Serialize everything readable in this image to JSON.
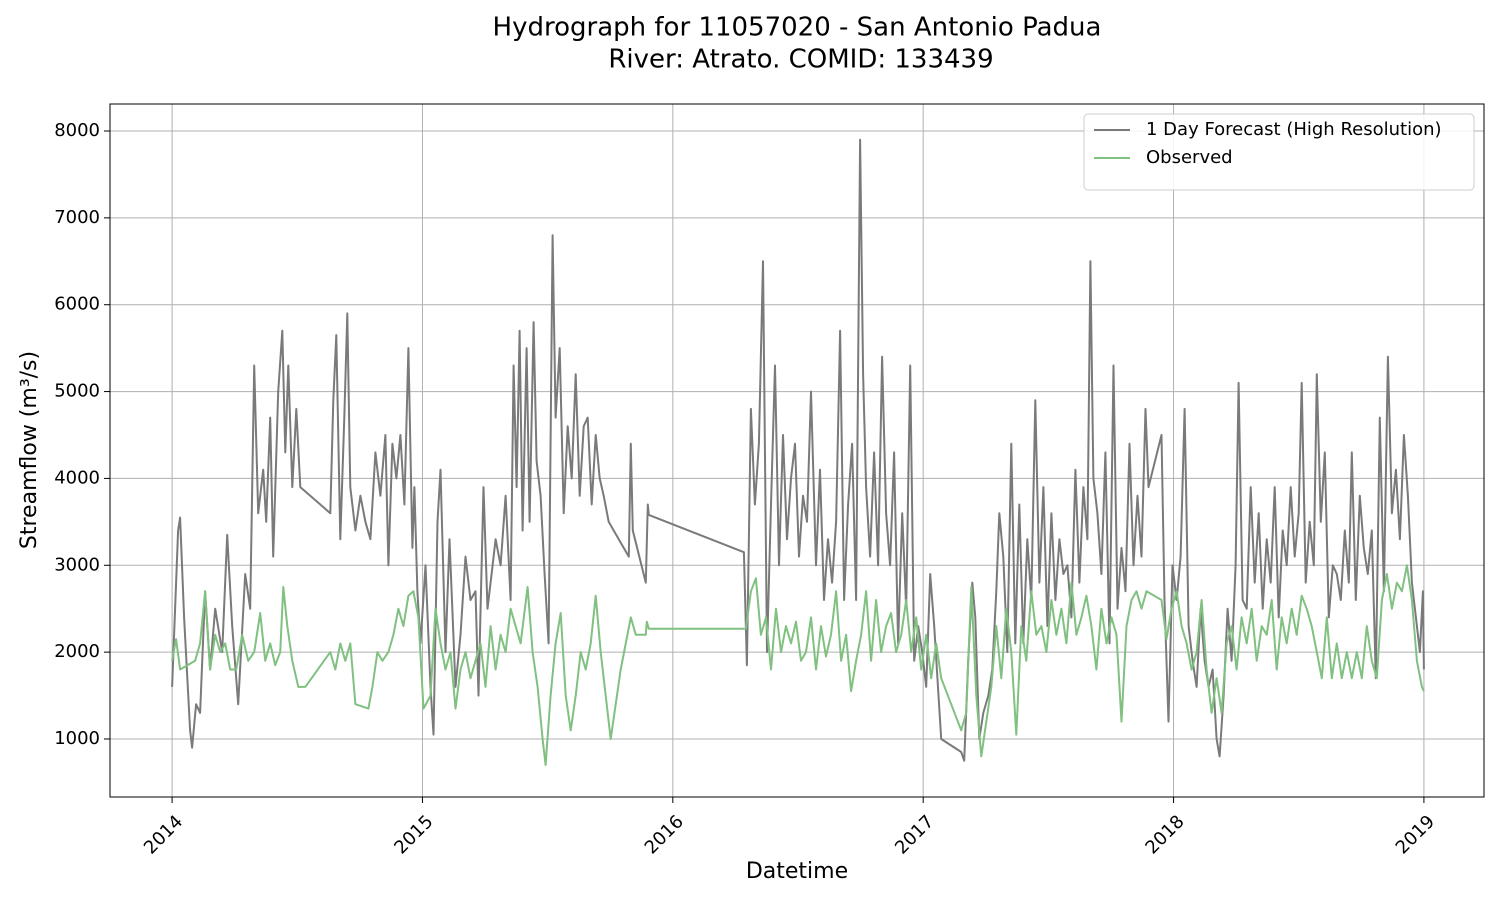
{
  "chart_data": {
    "type": "line",
    "title": "Hydrograph for 11057020 - San Antonio Padua",
    "subtitle": "River: Atrato. COMID: 133439",
    "x_label": "Datetime",
    "y_label": "Streamflow (m³/s)",
    "xlim": [
      2013.752,
      2019.24
    ],
    "xticks": [
      2014,
      2015,
      2016,
      2017,
      2018,
      2019
    ],
    "ylim": [
      332,
      8311
    ],
    "yticks": [
      1000,
      2000,
      3000,
      4000,
      5000,
      6000,
      7000,
      8000
    ],
    "grid": true,
    "legend": "upper right",
    "series": [
      {
        "name": "1 Day Forecast (High Resolution)",
        "color": "#7a7a7a",
        "x": [
          2014.0,
          2014.024,
          2014.032,
          2014.048,
          2014.072,
          2014.08,
          2014.096,
          2014.112,
          2014.132,
          2014.152,
          2014.172,
          2014.2,
          2014.22,
          2014.24,
          2014.264,
          2014.292,
          2014.312,
          2014.328,
          2014.344,
          2014.364,
          2014.376,
          2014.392,
          2014.404,
          2014.424,
          2014.44,
          2014.452,
          2014.464,
          2014.48,
          2014.496,
          2014.512,
          2014.632,
          2014.644,
          2014.656,
          2014.672,
          2014.688,
          2014.7,
          2014.712,
          2014.732,
          2014.752,
          2014.772,
          2014.792,
          2014.812,
          2014.832,
          2014.852,
          2014.864,
          2014.88,
          2014.896,
          2014.912,
          2014.928,
          2014.944,
          2014.96,
          2014.968,
          2014.98,
          2014.992,
          2015.012,
          2015.032,
          2015.044,
          2015.06,
          2015.072,
          2015.092,
          2015.108,
          2015.132,
          2015.152,
          2015.172,
          2015.192,
          2015.212,
          2015.224,
          2015.244,
          2015.26,
          2015.276,
          2015.292,
          2015.312,
          2015.332,
          2015.352,
          2015.364,
          2015.376,
          2015.388,
          2015.4,
          2015.416,
          2015.428,
          2015.444,
          2015.456,
          2015.472,
          2015.488,
          2015.504,
          2015.52,
          2015.532,
          2015.548,
          2015.564,
          2015.58,
          2015.596,
          2015.612,
          2015.628,
          2015.644,
          2015.66,
          2015.676,
          2015.692,
          2015.708,
          2015.724,
          2015.744,
          2015.764,
          2015.824,
          2015.832,
          2015.84,
          2015.892,
          2015.9,
          2015.904,
          2016.284,
          2016.296,
          2016.312,
          2016.328,
          2016.344,
          2016.36,
          2016.376,
          2016.392,
          2016.408,
          2016.424,
          2016.44,
          2016.456,
          2016.472,
          2016.488,
          2016.504,
          2016.52,
          2016.536,
          2016.552,
          2016.572,
          2016.588,
          2016.604,
          2016.62,
          2016.636,
          2016.652,
          2016.668,
          2016.684,
          2016.7,
          2016.716,
          2016.732,
          2016.748,
          2016.76,
          2016.772,
          2016.788,
          2016.804,
          2016.82,
          2016.836,
          2016.852,
          2016.868,
          2016.884,
          2016.9,
          2016.916,
          2016.932,
          2016.948,
          2016.964,
          2016.98,
          2016.996,
          2017.012,
          2017.028,
          2017.044,
          2017.072,
          2017.152,
          2017.164,
          2017.18,
          2017.196,
          2017.208,
          2017.224,
          2017.24,
          2017.26,
          2017.276,
          2017.292,
          2017.304,
          2017.32,
          2017.336,
          2017.352,
          2017.368,
          2017.384,
          2017.4,
          2017.416,
          2017.432,
          2017.448,
          2017.464,
          2017.48,
          2017.496,
          2017.512,
          2017.528,
          2017.544,
          2017.56,
          2017.576,
          2017.592,
          2017.608,
          2017.624,
          2017.64,
          2017.656,
          2017.668,
          2017.68,
          2017.696,
          2017.712,
          2017.728,
          2017.744,
          2017.76,
          2017.776,
          2017.792,
          2017.808,
          2017.824,
          2017.84,
          2017.856,
          2017.872,
          2017.888,
          2017.9,
          2017.952,
          2017.964,
          2017.98,
          2017.996,
          2018.012,
          2018.028,
          2018.044,
          2018.06,
          2018.076,
          2018.092,
          2018.108,
          2018.124,
          2018.14,
          2018.156,
          2018.172,
          2018.184,
          2018.2,
          2018.216,
          2018.232,
          2018.248,
          2018.26,
          2018.276,
          2018.292,
          2018.308,
          2018.324,
          2018.34,
          2018.356,
          2018.372,
          2018.388,
          2018.404,
          2018.42,
          2018.436,
          2018.452,
          2018.468,
          2018.484,
          2018.5,
          2018.512,
          2018.528,
          2018.544,
          2018.56,
          2018.572,
          2018.588,
          2018.604,
          2018.62,
          2018.636,
          2018.652,
          2018.668,
          2018.684,
          2018.7,
          2018.712,
          2018.728,
          2018.744,
          2018.76,
          2018.776,
          2018.792,
          2018.808,
          2018.824,
          2018.84,
          2018.856,
          2018.872,
          2018.888,
          2018.904,
          2018.92,
          2018.936,
          2018.952,
          2018.968,
          2018.984,
          2018.996,
          2019.0
        ],
        "values": [
          1600,
          3400,
          3550,
          2400,
          1100,
          900,
          1400,
          1300,
          2700,
          1800,
          2500,
          2000,
          3350,
          2300,
          1400,
          2900,
          2500,
          5300,
          3600,
          4100,
          3500,
          4700,
          3100,
          5000,
          5700,
          4300,
          5300,
          3900,
          4800,
          3900,
          3600,
          4900,
          5650,
          3300,
          4700,
          5900,
          3900,
          3400,
          3800,
          3500,
          3300,
          4300,
          3800,
          4500,
          3000,
          4400,
          4000,
          4500,
          3700,
          5500,
          3200,
          3900,
          2700,
          2100,
          3000,
          1600,
          1050,
          3500,
          4100,
          2000,
          3300,
          1600,
          2200,
          3100,
          2600,
          2700,
          1500,
          3900,
          2500,
          2900,
          3300,
          3000,
          3800,
          2600,
          5300,
          3900,
          5700,
          3400,
          5500,
          3500,
          5800,
          4200,
          3800,
          2900,
          2100,
          6800,
          4700,
          5500,
          3600,
          4600,
          4000,
          5200,
          3800,
          4600,
          4700,
          3700,
          4500,
          4000,
          3800,
          3500,
          3400,
          3100,
          4400,
          3400,
          2800,
          3700,
          3580,
          3150,
          1850,
          4800,
          3700,
          4400,
          6500,
          2000,
          3700,
          5300,
          3000,
          4500,
          3300,
          4000,
          4400,
          3100,
          3800,
          3500,
          5000,
          3000,
          4100,
          2600,
          3300,
          2800,
          3500,
          5700,
          2600,
          3700,
          4400,
          2600,
          7900,
          5200,
          3900,
          3100,
          4300,
          3000,
          5400,
          3600,
          3000,
          4300,
          2100,
          3600,
          2500,
          5300,
          1900,
          2300,
          2000,
          1600,
          2900,
          2300,
          1000,
          850,
          750,
          1900,
          2800,
          2400,
          1000,
          1300,
          1500,
          1800,
          2700,
          3600,
          3100,
          2000,
          4400,
          2100,
          3700,
          2100,
          3300,
          2600,
          4900,
          2800,
          3900,
          2300,
          3600,
          2600,
          3300,
          2900,
          3000,
          2400,
          4100,
          2800,
          3900,
          3300,
          6500,
          4000,
          3600,
          2900,
          4300,
          2100,
          5300,
          2500,
          3200,
          2700,
          4400,
          3000,
          3800,
          3100,
          4800,
          3900,
          4500,
          2600,
          1200,
          3000,
          2600,
          3100,
          4800,
          2300,
          1900,
          1600,
          2500,
          1900,
          1600,
          1800,
          1000,
          800,
          1500,
          2500,
          1900,
          3000,
          5100,
          2600,
          2500,
          3900,
          2800,
          3600,
          2500,
          3300,
          2800,
          3900,
          2400,
          3400,
          3000,
          3900,
          3100,
          3600,
          5100,
          2800,
          3500,
          3000,
          5200,
          3500,
          4300,
          2400,
          3000,
          2900,
          2600,
          3400,
          2800,
          4300,
          2600,
          3800,
          3200,
          2900,
          3400,
          1700,
          4700,
          2700,
          5400,
          3600,
          4100,
          3300,
          4500,
          3800,
          2800,
          2400,
          2000,
          2700,
          1800
        ]
      },
      {
        "name": "Observed",
        "color": "#80c080",
        "x": [
          2014.0,
          2014.016,
          2014.032,
          2014.092,
          2014.112,
          2014.132,
          2014.152,
          2014.172,
          2014.192,
          2014.212,
          2014.232,
          2014.256,
          2014.28,
          2014.304,
          2014.328,
          2014.352,
          2014.372,
          2014.392,
          2014.412,
          2014.432,
          2014.444,
          2014.46,
          2014.48,
          2014.504,
          2014.532,
          2014.632,
          2014.652,
          2014.672,
          2014.692,
          2014.712,
          2014.732,
          2014.784,
          2014.8,
          2014.82,
          2014.84,
          2014.864,
          2014.884,
          2014.904,
          2014.924,
          2014.944,
          2014.964,
          2014.984,
          2015.004,
          2015.032,
          2015.052,
          2015.072,
          2015.092,
          2015.112,
          2015.132,
          2015.152,
          2015.172,
          2015.192,
          2015.212,
          2015.232,
          2015.252,
          2015.272,
          2015.292,
          2015.312,
          2015.332,
          2015.352,
          2015.372,
          2015.392,
          2015.42,
          2015.44,
          2015.46,
          2015.48,
          2015.492,
          2015.512,
          2015.532,
          2015.552,
          2015.572,
          2015.592,
          2015.612,
          2015.632,
          2015.652,
          2015.672,
          2015.692,
          2015.712,
          2015.732,
          2015.752,
          2015.792,
          2015.832,
          2015.852,
          2015.892,
          2015.896,
          2015.904,
          2016.292,
          2016.312,
          2016.332,
          2016.352,
          2016.372,
          2016.392,
          2016.412,
          2016.432,
          2016.452,
          2016.472,
          2016.492,
          2016.512,
          2016.532,
          2016.552,
          2016.572,
          2016.592,
          2016.612,
          2016.632,
          2016.652,
          2016.672,
          2016.692,
          2016.712,
          2016.732,
          2016.752,
          2016.772,
          2016.792,
          2016.812,
          2016.832,
          2016.852,
          2016.872,
          2016.892,
          2016.912,
          2016.932,
          2016.952,
          2016.972,
          2016.992,
          2017.012,
          2017.032,
          2017.052,
          2017.072,
          2017.152,
          2017.172,
          2017.192,
          2017.212,
          2017.232,
          2017.252,
          2017.272,
          2017.292,
          2017.312,
          2017.332,
          2017.352,
          2017.372,
          2017.392,
          2017.412,
          2017.432,
          2017.452,
          2017.472,
          2017.492,
          2017.512,
          2017.532,
          2017.552,
          2017.572,
          2017.592,
          2017.612,
          2017.632,
          2017.652,
          2017.672,
          2017.692,
          2017.712,
          2017.732,
          2017.752,
          2017.772,
          2017.792,
          2017.812,
          2017.832,
          2017.852,
          2017.872,
          2017.892,
          2017.952,
          2017.972,
          2017.992,
          2018.012,
          2018.032,
          2018.052,
          2018.072,
          2018.092,
          2018.112,
          2018.132,
          2018.152,
          2018.172,
          2018.192,
          2018.212,
          2018.232,
          2018.252,
          2018.272,
          2018.292,
          2018.312,
          2018.332,
          2018.352,
          2018.372,
          2018.392,
          2018.412,
          2018.432,
          2018.452,
          2018.472,
          2018.492,
          2018.512,
          2018.532,
          2018.552,
          2018.572,
          2018.592,
          2018.612,
          2018.632,
          2018.652,
          2018.672,
          2018.692,
          2018.712,
          2018.732,
          2018.752,
          2018.772,
          2018.792,
          2018.812,
          2018.832,
          2018.852,
          2018.872,
          2018.892,
          2018.912,
          2018.932,
          2018.952,
          2018.972,
          2018.992,
          2019.0
        ],
        "values": [
          1900,
          2150,
          1800,
          1900,
          2100,
          2700,
          1800,
          2200,
          2000,
          2100,
          1800,
          1800,
          2200,
          1900,
          2000,
          2450,
          1900,
          2100,
          1850,
          2000,
          2750,
          2300,
          1900,
          1600,
          1600,
          2000,
          1800,
          2100,
          1900,
          2100,
          1400,
          1350,
          1600,
          2000,
          1900,
          2000,
          2200,
          2500,
          2300,
          2650,
          2700,
          2400,
          1350,
          1500,
          2500,
          2100,
          1800,
          2000,
          1350,
          1800,
          2000,
          1700,
          1900,
          2100,
          1600,
          2300,
          1800,
          2200,
          2000,
          2500,
          2300,
          2100,
          2750,
          2000,
          1600,
          1000,
          700,
          1500,
          2100,
          2450,
          1500,
          1100,
          1500,
          2000,
          1800,
          2100,
          2650,
          2000,
          1500,
          1000,
          1800,
          2400,
          2200,
          2200,
          2350,
          2270,
          2270,
          2700,
          2850,
          2200,
          2400,
          1800,
          2500,
          2000,
          2300,
          2100,
          2350,
          1900,
          2000,
          2400,
          1800,
          2300,
          1950,
          2200,
          2700,
          1900,
          2200,
          1550,
          1900,
          2200,
          2700,
          1900,
          2600,
          2000,
          2300,
          2450,
          2000,
          2200,
          2600,
          2000,
          2400,
          1800,
          2200,
          1700,
          2100,
          1700,
          1100,
          1300,
          2750,
          1500,
          800,
          1200,
          1600,
          2300,
          1700,
          2500,
          2000,
          1050,
          2300,
          1900,
          2700,
          2200,
          2300,
          2000,
          2600,
          2200,
          2500,
          2100,
          2800,
          2200,
          2400,
          2650,
          2300,
          1800,
          2500,
          2100,
          2400,
          2200,
          1200,
          2300,
          2600,
          2700,
          2500,
          2700,
          2600,
          2150,
          2500,
          2700,
          2300,
          2100,
          1800,
          2000,
          2600,
          1800,
          1300,
          1700,
          1300,
          2100,
          2300,
          1800,
          2400,
          2100,
          2500,
          1900,
          2300,
          2200,
          2600,
          1800,
          2400,
          2100,
          2500,
          2200,
          2650,
          2500,
          2300,
          2000,
          1700,
          2400,
          1700,
          2100,
          1700,
          2000,
          1700,
          2000,
          1700,
          2300,
          1900,
          1700,
          2600,
          2900,
          2500,
          2800,
          2700,
          3000,
          2600,
          1900,
          1600,
          1550
        ]
      }
    ]
  }
}
